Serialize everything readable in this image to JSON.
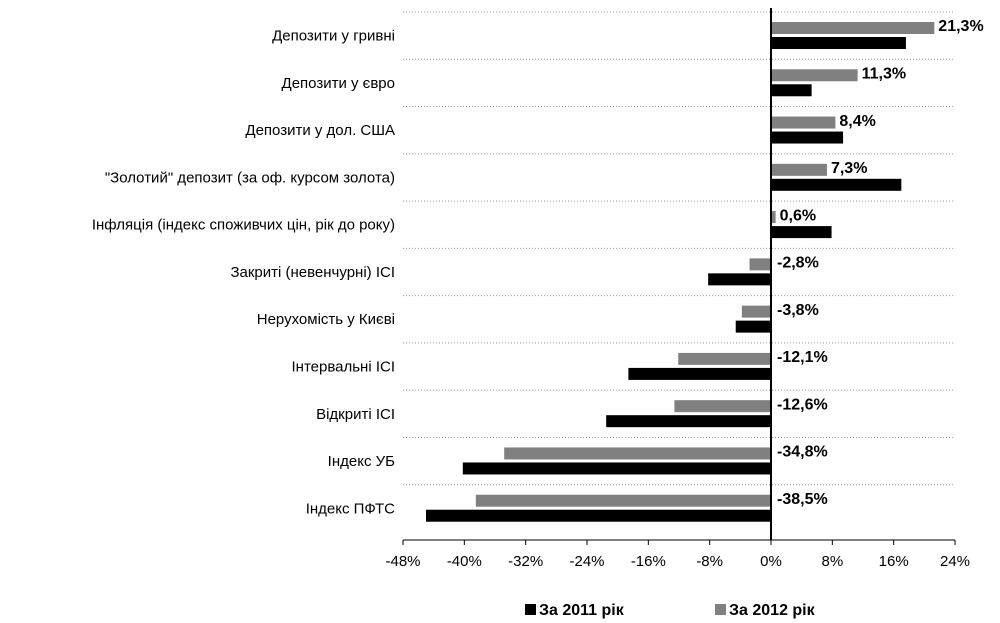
{
  "chart_data": {
    "type": "hbar",
    "categories": [
      "Депозити у гривні",
      "Депозити у євро",
      "Депозити у дол. США",
      "\"Золотий\" депозит (за оф. курсом золота)",
      "Інфляція (індекс споживчих цін, рік до року)",
      "Закриті (невенчурні) ІСІ",
      "Нерухомість у Києві",
      "Інтервальні ІСІ",
      "Відкриті ІСІ",
      "Індекс УБ",
      "Індекс ПФТС"
    ],
    "series": [
      {
        "name": "За 2011 рік",
        "color": "#000000",
        "values": [
          17.6,
          5.3,
          9.4,
          17.0,
          7.9,
          -8.2,
          -4.6,
          -18.6,
          -21.5,
          -40.2,
          -45.0
        ]
      },
      {
        "name": "За 2012 рік",
        "color": "#808080",
        "values": [
          21.3,
          11.3,
          8.4,
          7.3,
          0.6,
          -2.8,
          -3.8,
          -12.1,
          -12.6,
          -34.8,
          -38.5
        ],
        "value_labels": [
          "21,3%",
          "11,3%",
          "8,4%",
          "7,3%",
          "0,6%",
          "-2,8%",
          "-3,8%",
          "-12,1%",
          "-12,6%",
          "-34,8%",
          "-38,5%"
        ]
      }
    ],
    "xlim": [
      -48,
      24
    ],
    "xticks": [
      {
        "value": -48,
        "label": "-48%"
      },
      {
        "value": -40,
        "label": "-40%"
      },
      {
        "value": -32,
        "label": "-32%"
      },
      {
        "value": -24,
        "label": "-24%"
      },
      {
        "value": -16,
        "label": "-16%"
      },
      {
        "value": -8,
        "label": "-8%"
      },
      {
        "value": 0,
        "label": "0%"
      },
      {
        "value": 8,
        "label": "8%"
      },
      {
        "value": 16,
        "label": "16%"
      },
      {
        "value": 24,
        "label": "24%"
      }
    ],
    "grid": true,
    "legend": "bottom"
  }
}
